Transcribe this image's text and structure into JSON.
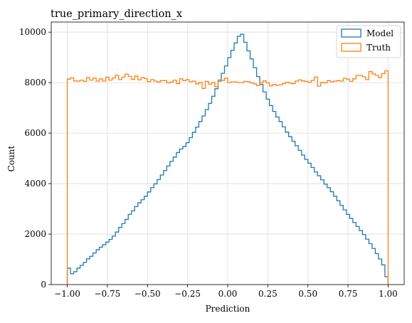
{
  "chart_data": {
    "type": "histogram",
    "title": "true_primary_direction_x",
    "xlabel": "Prediction",
    "ylabel": "Count",
    "xlim": [
      -1.1,
      1.1
    ],
    "ylim": [
      0,
      10400
    ],
    "x_ticks": [
      -1.0,
      -0.75,
      -0.5,
      -0.25,
      0.0,
      0.25,
      0.5,
      0.75,
      1.0
    ],
    "x_tick_labels": [
      "−1.00",
      "−0.75",
      "−0.50",
      "−0.25",
      "0.00",
      "0.25",
      "0.50",
      "0.75",
      "1.00"
    ],
    "y_ticks": [
      0,
      2000,
      4000,
      6000,
      8000,
      10000
    ],
    "y_tick_labels": [
      "0",
      "2000",
      "4000",
      "6000",
      "8000",
      "10000"
    ],
    "grid": true,
    "legend_position": "top-right",
    "bins": {
      "start": -1.0,
      "end": 1.0,
      "count": 100
    },
    "series": [
      {
        "name": "Model",
        "color": "#1f77b4",
        "values": [
          650,
          430,
          510,
          650,
          760,
          880,
          1020,
          1120,
          1250,
          1380,
          1480,
          1580,
          1680,
          1790,
          1920,
          2080,
          2260,
          2420,
          2580,
          2780,
          2920,
          3090,
          3240,
          3360,
          3500,
          3670,
          3840,
          3990,
          4160,
          4340,
          4520,
          4700,
          4880,
          5050,
          5230,
          5370,
          5470,
          5620,
          5820,
          6030,
          6240,
          6460,
          6680,
          6930,
          7180,
          7460,
          7760,
          8060,
          8370,
          8660,
          8990,
          9280,
          9570,
          9840,
          9920,
          9600,
          9260,
          8940,
          8590,
          8240,
          7930,
          7630,
          7350,
          7090,
          6860,
          6640,
          6460,
          6250,
          6040,
          5860,
          5680,
          5500,
          5320,
          5130,
          4960,
          4810,
          4640,
          4460,
          4310,
          4150,
          3980,
          3840,
          3680,
          3500,
          3320,
          3140,
          2960,
          2780,
          2620,
          2460,
          2300,
          2140,
          1980,
          1800,
          1620,
          1430,
          1230,
          1010,
          780,
          310
        ]
      },
      {
        "name": "Truth",
        "color": "#ff7f0e",
        "values": [
          8140,
          8190,
          8070,
          8060,
          8100,
          8050,
          8200,
          8100,
          8180,
          8060,
          8150,
          8060,
          8220,
          8100,
          8180,
          8290,
          8120,
          8220,
          8340,
          8250,
          8130,
          8260,
          8110,
          8200,
          8160,
          8040,
          8120,
          8060,
          8020,
          8080,
          8080,
          7990,
          8020,
          8100,
          7960,
          8150,
          8080,
          8120,
          8040,
          8060,
          7950,
          8010,
          7770,
          8050,
          7940,
          8010,
          7840,
          8110,
          8090,
          8180,
          8000,
          8030,
          8030,
          8000,
          8000,
          8050,
          8040,
          7990,
          7950,
          7890,
          7990,
          8070,
          7990,
          7870,
          7930,
          7900,
          7910,
          7960,
          8010,
          7990,
          7960,
          8060,
          8110,
          8070,
          8050,
          8010,
          8090,
          8220,
          7860,
          8010,
          7990,
          8080,
          8030,
          8060,
          8080,
          8060,
          8170,
          8140,
          8050,
          8150,
          8290,
          8290,
          8230,
          8120,
          8440,
          8350,
          8290,
          8200,
          8360,
          8470
        ]
      }
    ]
  }
}
